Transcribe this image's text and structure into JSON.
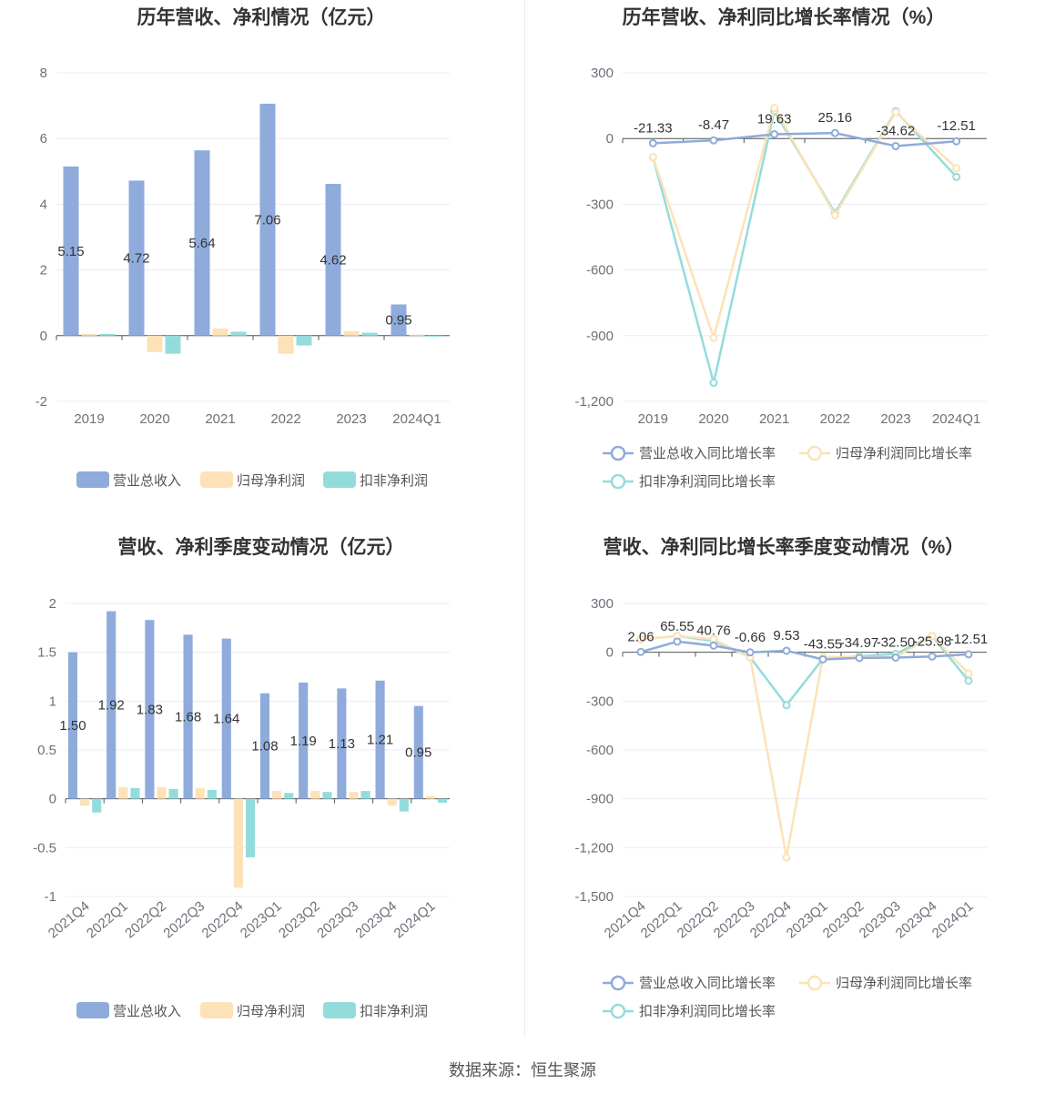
{
  "colors": {
    "revenue": "#8eabdb",
    "parent": "#fde2b7",
    "deducted": "#94dcdc",
    "grid": "#e8ecf4",
    "axis": "#6e7079",
    "zero": "#555555"
  },
  "source": "数据来源：恒生聚源",
  "chart_data": [
    {
      "type": "bar",
      "title": "历年营收、净利情况（亿元）",
      "categories": [
        "2019",
        "2020",
        "2021",
        "2022",
        "2023",
        "2024Q1"
      ],
      "ylim": [
        -2,
        8
      ],
      "yticks": [
        "-2",
        "0",
        "2",
        "4",
        "6",
        "8"
      ],
      "series": [
        {
          "name": "营业总收入",
          "values": [
            5.15,
            4.72,
            5.64,
            7.06,
            4.62,
            0.95
          ],
          "labels": [
            "5.15",
            "4.72",
            "5.64",
            "7.06",
            "4.62",
            "0.95"
          ]
        },
        {
          "name": "归母净利润",
          "values": [
            0.05,
            -0.5,
            0.22,
            -0.55,
            0.14,
            0.03
          ]
        },
        {
          "name": "扣非净利润",
          "values": [
            0.05,
            -0.55,
            0.12,
            -0.3,
            0.09,
            -0.03
          ]
        }
      ],
      "grid": true,
      "legend": "bottom"
    },
    {
      "type": "line",
      "title": "历年营收、净利同比增长率情况（%）",
      "categories": [
        "2019",
        "2020",
        "2021",
        "2022",
        "2023",
        "2024Q1"
      ],
      "ylim": [
        -1200,
        300
      ],
      "yticks": [
        "-1,200",
        "-900",
        "-600",
        "-300",
        "0",
        "300"
      ],
      "series": [
        {
          "name": "营业总收入同比增长率",
          "values": [
            -21.33,
            -8.47,
            19.63,
            25.16,
            -34.62,
            -12.51
          ],
          "labels": [
            "-21.33",
            "-8.47",
            "19.63",
            "25.16",
            "-34.62",
            "-12.51"
          ]
        },
        {
          "name": "归母净利润同比增长率",
          "values": [
            -85,
            -910,
            140,
            -350,
            120,
            -135
          ]
        },
        {
          "name": "扣非净利润同比增长率",
          "values": [
            -85,
            -1115,
            125,
            -340,
            125,
            -175
          ]
        }
      ],
      "grid": true,
      "legend": "bottom"
    },
    {
      "type": "bar",
      "title": "营收、净利季度变动情况（亿元）",
      "categories": [
        "2021Q4",
        "2022Q1",
        "2022Q2",
        "2022Q3",
        "2022Q4",
        "2023Q1",
        "2023Q2",
        "2023Q3",
        "2023Q4",
        "2024Q1"
      ],
      "ylim": [
        -1,
        2
      ],
      "yticks": [
        "-1",
        "-0.5",
        "0",
        "0.5",
        "1",
        "1.5",
        "2"
      ],
      "series": [
        {
          "name": "营业总收入",
          "values": [
            1.5,
            1.92,
            1.83,
            1.68,
            1.64,
            1.08,
            1.19,
            1.13,
            1.21,
            0.95
          ],
          "labels": [
            "1.50",
            "1.92",
            "1.83",
            "1.68",
            "1.64",
            "1.08",
            "1.19",
            "1.13",
            "1.21",
            "0.95"
          ]
        },
        {
          "name": "归母净利润",
          "values": [
            -0.07,
            0.12,
            0.12,
            0.11,
            -0.91,
            0.08,
            0.08,
            0.07,
            -0.07,
            0.03
          ]
        },
        {
          "name": "扣非净利润",
          "values": [
            -0.14,
            0.11,
            0.1,
            0.09,
            -0.6,
            0.06,
            0.07,
            0.08,
            -0.13,
            -0.04
          ]
        }
      ],
      "grid": true,
      "legend": "bottom"
    },
    {
      "type": "line",
      "title": "营收、净利同比增长率季度变动情况（%）",
      "categories": [
        "2021Q4",
        "2022Q1",
        "2022Q2",
        "2022Q3",
        "2022Q4",
        "2023Q1",
        "2023Q2",
        "2023Q3",
        "2023Q4",
        "2024Q1"
      ],
      "ylim": [
        -1500,
        300
      ],
      "yticks": [
        "-1,500",
        "-1,200",
        "-900",
        "-600",
        "-300",
        "0",
        "300"
      ],
      "series": [
        {
          "name": "营业总收入同比增长率",
          "values": [
            2.06,
            65.55,
            40.76,
            -0.66,
            9.53,
            -43.55,
            -34.97,
            -32.5,
            -25.98,
            -12.51
          ],
          "labels": [
            "2.06",
            "65.55",
            "40.76",
            "-0.66",
            "9.53",
            "-43.55",
            "-34.97",
            "-32.50",
            "-25.98",
            "-12.51"
          ]
        },
        {
          "name": "归母净利润同比增长率",
          "values": [
            80,
            100,
            80,
            -30,
            -1260,
            -30,
            -30,
            -30,
            100,
            -130
          ]
        },
        {
          "name": "扣非净利润同比增长率",
          "values": [
            80,
            100,
            70,
            -30,
            -325,
            -40,
            -25,
            -10,
            100,
            -175
          ]
        }
      ],
      "grid": true,
      "legend": "bottom"
    }
  ]
}
